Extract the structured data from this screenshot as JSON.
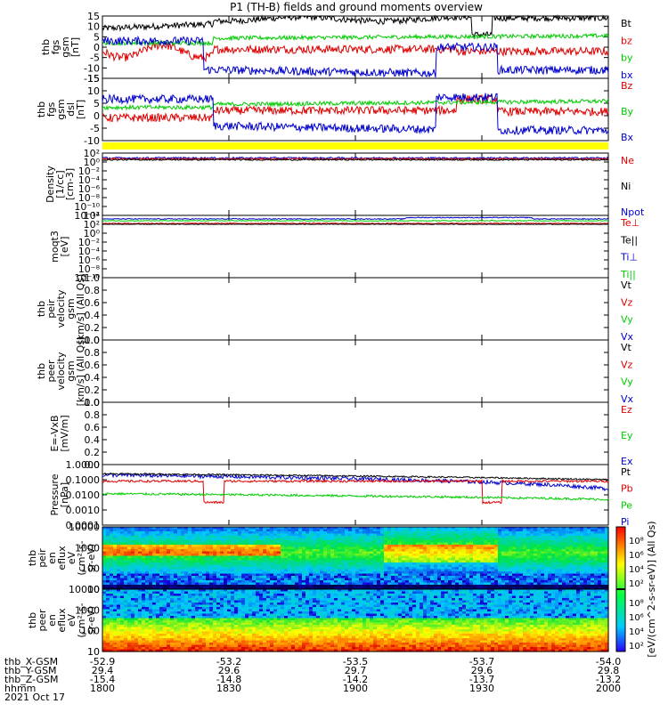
{
  "title": "P1 (TH-B) fields and ground moments overview",
  "colors": {
    "black": "#000000",
    "red": "#dd0000",
    "green": "#00cc00",
    "blue": "#0000cc",
    "yellow": "#ffff00"
  },
  "panels": [
    {
      "id": "fgs-gsm",
      "ylabel": [
        "thb",
        "fgs",
        "gsm",
        "[nT]"
      ],
      "yticks": [
        "15",
        "10",
        "5",
        "0",
        "-5",
        "-10",
        "-15"
      ],
      "legend": [
        {
          "text": "Bt",
          "color": "black"
        },
        {
          "text": "bz",
          "color": "red"
        },
        {
          "text": "by",
          "color": "green"
        },
        {
          "text": "bx",
          "color": "blue"
        }
      ]
    },
    {
      "id": "fgs-dsl",
      "ylabel": [
        "thb",
        "fgs",
        "gsm",
        "dsl",
        "[nT]"
      ],
      "yticks": [
        "15",
        "10",
        "5",
        "0",
        "-5",
        "-10"
      ],
      "legend": [
        {
          "text": "Bz",
          "color": "red"
        },
        {
          "text": "By",
          "color": "green"
        },
        {
          "text": "Bx",
          "color": "blue"
        }
      ]
    },
    {
      "id": "density",
      "ylabel": [
        "Density",
        "[1/cc]",
        "[cm-3]"
      ],
      "yticks": [
        "10²",
        "10⁰",
        "10⁻²",
        "10⁻⁴",
        "10⁻⁶",
        "10⁻⁸",
        "10⁻¹⁰",
        "10⁻¹²"
      ],
      "legend": [
        {
          "text": "Ne",
          "color": "red"
        },
        {
          "text": "Ni",
          "color": "black"
        },
        {
          "text": "Npot",
          "color": "blue"
        }
      ]
    },
    {
      "id": "temperature",
      "ylabel": [
        "moqt3",
        "[eV]"
      ],
      "yticks": [
        "10⁴",
        "10²",
        "10⁰",
        "10⁻²",
        "10⁻⁴",
        "10⁻⁶",
        "10⁻⁸",
        "10⁻¹⁰"
      ],
      "legend": [
        {
          "text": "Te⊥",
          "color": "red"
        },
        {
          "text": "Te||",
          "color": "black"
        },
        {
          "text": "Ti⊥",
          "color": "blue"
        },
        {
          "text": "Ti||",
          "color": "green"
        }
      ]
    },
    {
      "id": "peir-velocity",
      "ylabel": [
        "thb",
        "peir",
        "velocity",
        "gsm",
        "[km/s] (All Qs)"
      ],
      "yticks": [
        "1.0",
        "0.8",
        "0.6",
        "0.4",
        "0.2",
        "0.0"
      ],
      "legend": [
        {
          "text": "Vt",
          "color": "black"
        },
        {
          "text": "Vz",
          "color": "red"
        },
        {
          "text": "Vy",
          "color": "green"
        },
        {
          "text": "Vx",
          "color": "blue"
        }
      ]
    },
    {
      "id": "peer-velocity",
      "ylabel": [
        "thb",
        "peer",
        "velocity",
        "gsm",
        "[km/s] (All Qs)"
      ],
      "yticks": [
        "1.0",
        "0.8",
        "0.6",
        "0.4",
        "0.2",
        "0.0"
      ],
      "legend": [
        {
          "text": "Vt",
          "color": "black"
        },
        {
          "text": "Vz",
          "color": "red"
        },
        {
          "text": "Vy",
          "color": "green"
        },
        {
          "text": "Vx",
          "color": "blue"
        }
      ]
    },
    {
      "id": "efield",
      "ylabel": [
        "E=-VxB",
        "[mV/m]"
      ],
      "yticks": [
        "1.0",
        "0.8",
        "0.6",
        "0.4",
        "0.2",
        "0.0"
      ],
      "legend": [
        {
          "text": "Ez",
          "color": "red"
        },
        {
          "text": "Ey",
          "color": "green"
        },
        {
          "text": "Ex",
          "color": "blue"
        }
      ]
    },
    {
      "id": "pressure",
      "ylabel": [
        "Pressure",
        "[nPa]"
      ],
      "yticks": [
        "1.0000",
        "0.1000",
        "0.0100",
        "0.0010",
        "0.0001"
      ],
      "legend": [
        {
          "text": "Pt",
          "color": "black"
        },
        {
          "text": "Pb",
          "color": "red"
        },
        {
          "text": "Pe",
          "color": "green"
        },
        {
          "text": "Pi",
          "color": "blue"
        }
      ]
    },
    {
      "id": "peir-eflux",
      "ylabel": [
        "thb",
        "peir",
        "en",
        "eflux",
        "eV",
        "(cm²-s-",
        "sr-eV)"
      ],
      "yticks": [
        "10000",
        "1000",
        "100",
        "10"
      ]
    },
    {
      "id": "peer-eflux",
      "ylabel": [
        "thb",
        "peer",
        "en",
        "eflux",
        "eV",
        "(cm²-s-",
        "sr-eV)"
      ],
      "yticks": [
        "10000",
        "1000",
        "100",
        "10"
      ]
    }
  ],
  "colorbar": {
    "label": "[eV/(cm^2-s-sr-eV)] (All Qs)",
    "ticks_top": [
      "10⁸",
      "10⁶",
      "10⁴",
      "10²"
    ],
    "ticks_bottom": [
      "10⁸",
      "10⁶",
      "10⁴",
      "10²"
    ]
  },
  "xaxis": {
    "row_labels": [
      "thb_X-GSM",
      "thb_Y-GSM",
      "thb_Z-GSM",
      "hhmm",
      "2021 Oct 17"
    ],
    "columns": [
      {
        "x": "-52.9",
        "y": "29.4",
        "z": "-15.4",
        "hhmm": "1800"
      },
      {
        "x": "-53.2",
        "y": "29.6",
        "z": "-14.8",
        "hhmm": "1830"
      },
      {
        "x": "-53.5",
        "y": "29.7",
        "z": "-14.2",
        "hhmm": "1900"
      },
      {
        "x": "-53.7",
        "y": "29.6",
        "z": "-13.7",
        "hhmm": "1930"
      },
      {
        "x": "-54.0",
        "y": "29.8",
        "z": "-13.2",
        "hhmm": "2000"
      }
    ]
  },
  "chart_data": {
    "type": "line",
    "title": "P1 (TH-B) fields and ground moments overview",
    "x_range": [
      "1800",
      "2000"
    ],
    "series": [
      {
        "name": "Bt",
        "panel": "fgs-gsm",
        "x": [
          "1800",
          "1815",
          "1830",
          "1845",
          "1900",
          "1915",
          "1930",
          "1945",
          "2000"
        ],
        "values": [
          10,
          11,
          12,
          13,
          14,
          14,
          8,
          13,
          14
        ]
      },
      {
        "name": "bz",
        "panel": "fgs-gsm",
        "x": [
          "1800",
          "1815",
          "1830",
          "1845",
          "1900",
          "1915",
          "1930",
          "1945",
          "2000"
        ],
        "values": [
          0,
          -3,
          -1,
          -1,
          -1,
          -1,
          -3,
          0,
          -1
        ]
      },
      {
        "name": "by",
        "panel": "fgs-gsm",
        "x": [
          "1800",
          "1815",
          "1830",
          "1845",
          "1900",
          "1915",
          "1930",
          "1945",
          "2000"
        ],
        "values": [
          2,
          3,
          4,
          4,
          4,
          4,
          3,
          5,
          5
        ]
      },
      {
        "name": "bx",
        "panel": "fgs-gsm",
        "x": [
          "1800",
          "1815",
          "1830",
          "1845",
          "1900",
          "1915",
          "1930",
          "1945",
          "2000"
        ],
        "values": [
          2,
          1,
          -7,
          -9,
          -11,
          -12,
          -5,
          -9,
          -11
        ]
      },
      {
        "name": "Pt",
        "panel": "pressure",
        "x": [
          "1800",
          "1830",
          "1900",
          "1930",
          "2000"
        ],
        "values": [
          0.2,
          0.15,
          0.06,
          0.08,
          0.09
        ]
      },
      {
        "name": "Pb",
        "panel": "pressure",
        "x": [
          "1800",
          "1830",
          "1900",
          "1930",
          "2000"
        ],
        "values": [
          0.08,
          0.08,
          0.07,
          0.07,
          0.09
        ]
      },
      {
        "name": "Pe",
        "panel": "pressure",
        "x": [
          "1800",
          "1830",
          "1900",
          "1930",
          "2000"
        ],
        "values": [
          0.01,
          0.008,
          0.004,
          0.006,
          0.005
        ]
      },
      {
        "name": "Pi",
        "panel": "pressure",
        "x": [
          "1800",
          "1830",
          "1900",
          "1930",
          "2000"
        ],
        "values": [
          0.15,
          0.1,
          0.03,
          0.02,
          0.01
        ]
      }
    ]
  }
}
